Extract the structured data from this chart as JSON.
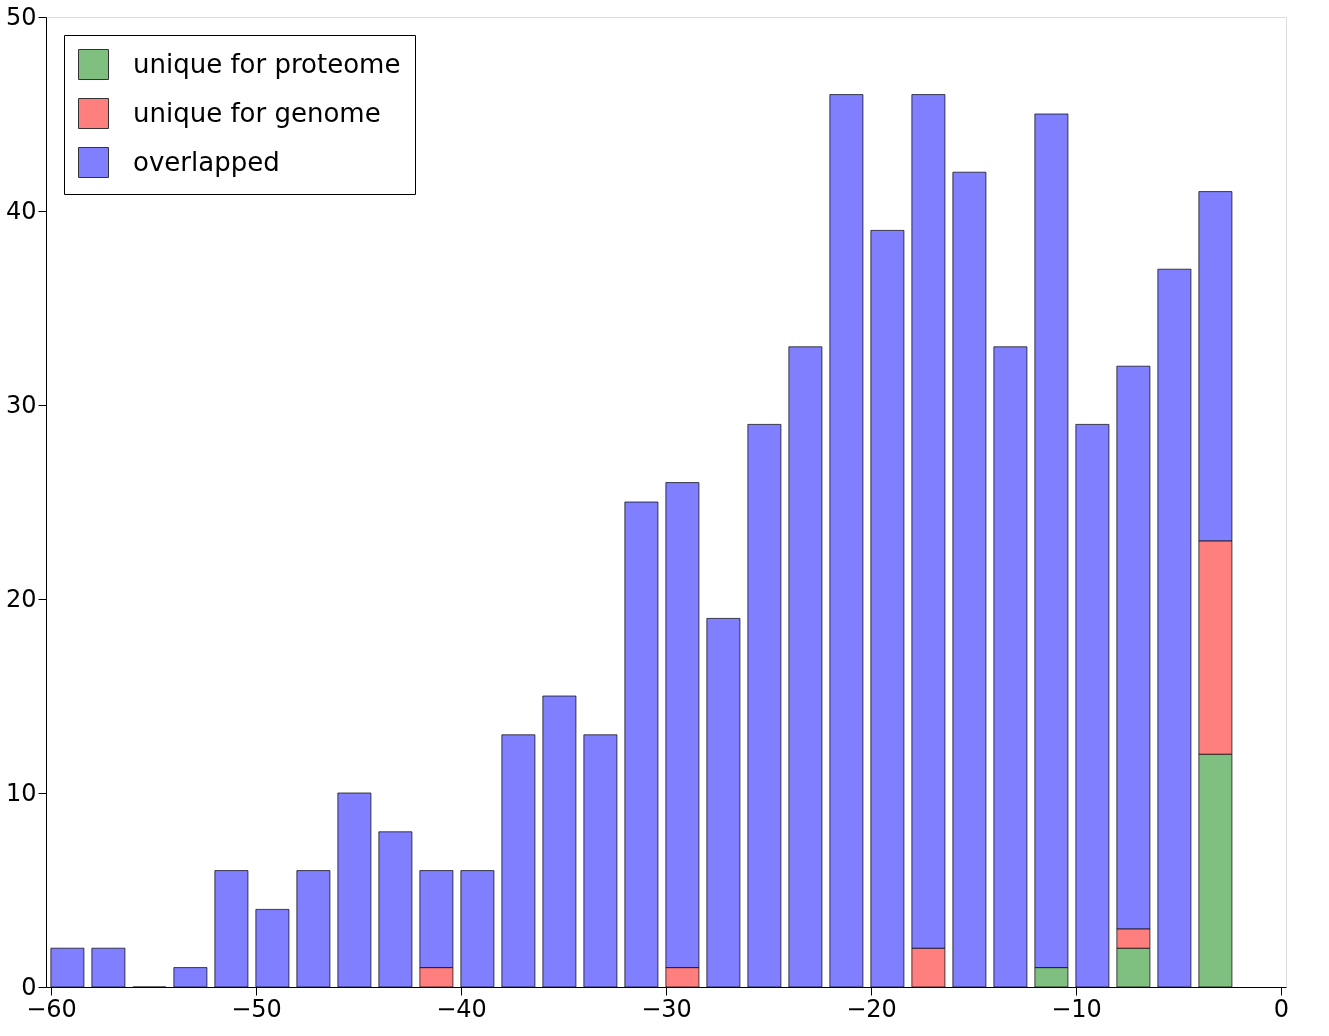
{
  "chart_data": {
    "type": "bar",
    "stacked": true,
    "x": [
      -59.2,
      -57.2,
      -55.2,
      -53.2,
      -51.2,
      -49.2,
      -47.2,
      -45.2,
      -43.2,
      -41.2,
      -39.2,
      -37.2,
      -35.2,
      -33.2,
      -31.2,
      -29.2,
      -27.2,
      -25.2,
      -23.2,
      -21.2,
      -19.2,
      -17.2,
      -15.2,
      -13.2,
      -11.2,
      -9.2,
      -7.2,
      -5.2,
      -3.2
    ],
    "series": [
      {
        "name": "unique for proteome",
        "color": "#7fbf7f",
        "values": [
          null,
          null,
          null,
          null,
          null,
          null,
          null,
          null,
          null,
          null,
          null,
          null,
          null,
          null,
          null,
          null,
          null,
          null,
          null,
          null,
          null,
          null,
          null,
          null,
          1,
          null,
          2,
          null,
          12
        ]
      },
      {
        "name": "unique for genome",
        "color": "#ff7f7f",
        "values": [
          null,
          null,
          null,
          null,
          null,
          null,
          null,
          null,
          null,
          1,
          null,
          null,
          null,
          null,
          null,
          1,
          null,
          null,
          null,
          null,
          null,
          2,
          null,
          null,
          null,
          null,
          1,
          null,
          11
        ]
      },
      {
        "name": "overlapped",
        "color": "#7f7fff",
        "values": [
          2,
          2,
          0,
          1,
          6,
          4,
          6,
          10,
          8,
          5,
          6,
          13,
          15,
          13,
          25,
          25,
          19,
          29,
          33,
          46,
          39,
          44,
          42,
          33,
          44,
          29,
          29,
          37,
          18
        ]
      }
    ],
    "xlim": [
      -60,
      0
    ],
    "xticks": [
      -60,
      -50,
      -40,
      -30,
      -20,
      -10,
      0
    ],
    "ylim": [
      0,
      50
    ],
    "yticks": [
      0,
      10,
      20,
      30,
      40,
      50
    ],
    "grid": false,
    "legend": "top left"
  }
}
